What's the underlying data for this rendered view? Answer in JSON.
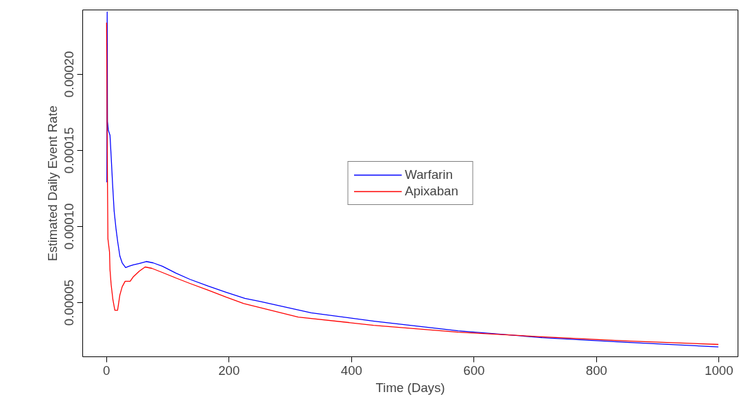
{
  "chart_data": {
    "type": "line",
    "xlabel": "Time (Days)",
    "ylabel": "Estimated Daily Event Rate",
    "xlim": [
      -39,
      1031
    ],
    "xticks": [
      0,
      200,
      400,
      600,
      800,
      1000
    ],
    "ylim": [
      1.44e-05,
      0.0002423
    ],
    "yticks": [
      {
        "value": 5e-05,
        "label": "0.00005"
      },
      {
        "value": 0.0001,
        "label": "0.00010"
      },
      {
        "value": 0.00015,
        "label": "0.00015"
      },
      {
        "value": 0.0002,
        "label": "0.00020"
      }
    ],
    "grid": false,
    "legend": "center",
    "line_style": "solid",
    "marker": "none",
    "series": [
      {
        "name": "Warfarin",
        "color": "#0000ff",
        "x": [
          0.5,
          1,
          1.5,
          3,
          5.6,
          7.5,
          9.8,
          12.4,
          15.4,
          18.3,
          21.7,
          25.5,
          31.1,
          36.7,
          43.8,
          53.6,
          64.8,
          76,
          91,
          113,
          136,
          166,
          195,
          226,
          251,
          334,
          437,
          574,
          711,
          848,
          999
        ],
        "values": [
          0.000129,
          0.000241,
          0.000169,
          0.000163,
          0.00016,
          0.000146,
          0.000128,
          0.00011,
          9.86e-05,
          8.96e-05,
          8.06e-05,
          7.61e-05,
          7.3e-05,
          7.39e-05,
          7.48e-05,
          7.57e-05,
          7.7e-05,
          7.61e-05,
          7.39e-05,
          6.94e-05,
          6.53e-05,
          6.08e-05,
          5.68e-05,
          5.27e-05,
          5.07e-05,
          4.33e-05,
          3.78e-05,
          3.15e-05,
          2.7e-05,
          2.39e-05,
          2.09e-05
        ]
      },
      {
        "name": "Apixaban",
        "color": "#ff0000",
        "x": [
          0,
          1.5,
          2.2,
          4.8,
          5.6,
          7.5,
          10.4,
          13.5,
          18,
          21.7,
          25.5,
          30.3,
          38.5,
          44,
          53.6,
          63,
          74,
          91,
          113,
          136,
          166,
          195,
          224,
          313,
          436,
          574,
          711,
          848,
          999
        ],
        "values": [
          0.000234,
          0.000129,
          9.19e-05,
          8.33e-05,
          7.16e-05,
          6.17e-05,
          5.18e-05,
          4.5e-05,
          4.5e-05,
          5.5e-05,
          6.04e-05,
          6.4e-05,
          6.4e-05,
          6.71e-05,
          7.07e-05,
          7.34e-05,
          7.25e-05,
          6.98e-05,
          6.62e-05,
          6.26e-05,
          5.81e-05,
          5.36e-05,
          4.94e-05,
          4.05e-05,
          3.51e-05,
          3.06e-05,
          2.75e-05,
          2.48e-05,
          2.25e-05
        ]
      }
    ]
  }
}
